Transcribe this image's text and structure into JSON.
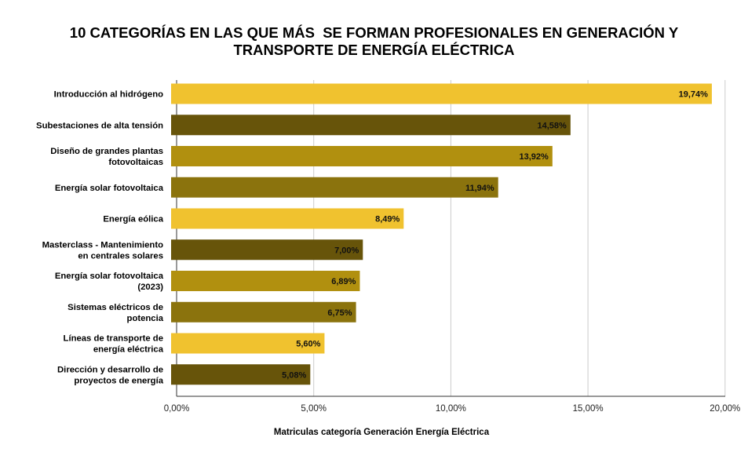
{
  "chart_data": {
    "type": "bar",
    "orientation": "horizontal",
    "title": [
      "10 CATEGORÍAS EN LAS QUE MÁS  SE FORMAN PROFESIONALES EN GENERACIÓN Y",
      "TRANSPORTE DE ENERGÍA ELÉCTRICA"
    ],
    "xlabel": "Matriculas categoría Generación Energía Eléctrica",
    "ylabel": "",
    "xlim": [
      0,
      20
    ],
    "x_ticks": [
      "0,00%",
      "5,00%",
      "10,00%",
      "15,00%",
      "20,00%"
    ],
    "grid": true,
    "categories": [
      [
        "Introducción al hidrógeno"
      ],
      [
        "Subestaciones de alta tensión"
      ],
      [
        "Diseño de grandes plantas",
        "fotovoltaicas"
      ],
      [
        "Energía solar fotovoltaica"
      ],
      [
        "Energía eólica"
      ],
      [
        "Masterclass - Mantenimiento",
        "en centrales solares"
      ],
      [
        "Energía solar fotovoltaica",
        "(2023)"
      ],
      [
        "Sistemas eléctricos de",
        "potencia"
      ],
      [
        "Líneas de transporte de",
        "energía eléctrica"
      ],
      [
        "Dirección y desarrollo de",
        "proyectos de energía"
      ]
    ],
    "values": [
      19.74,
      14.58,
      13.92,
      11.94,
      8.49,
      7.0,
      6.89,
      6.75,
      5.6,
      5.08
    ],
    "data_labels": [
      "19,74%",
      "14,58%",
      "13,92%",
      "11,94%",
      "8,49%",
      "7,00%",
      "6,89%",
      "6,75%",
      "5,60%",
      "5,08%"
    ],
    "colors": [
      "#F0C22F",
      "#67540A",
      "#B1900F",
      "#8B730D",
      "#F0C22F",
      "#67540A",
      "#B1900F",
      "#8B730D",
      "#F0C22F",
      "#67540A"
    ]
  }
}
